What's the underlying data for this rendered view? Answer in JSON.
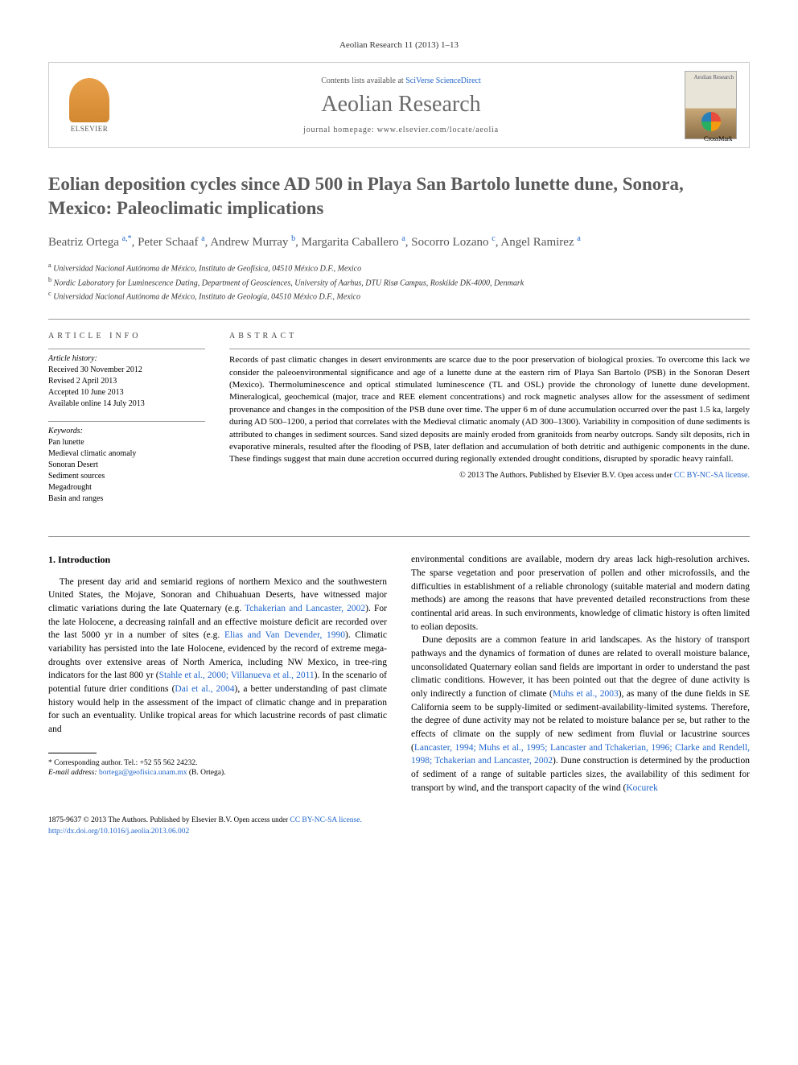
{
  "running_head": "Aeolian Research 11 (2013) 1–13",
  "header": {
    "contents_prefix": "Contents lists available at ",
    "contents_link": "SciVerse ScienceDirect",
    "journal": "Aeolian Research",
    "homepage_prefix": "journal homepage: ",
    "homepage_url": "www.elsevier.com/locate/aeolia",
    "publisher": "ELSEVIER",
    "cover_label": "Aeolian Research"
  },
  "crossmark": "CrossMark",
  "title": "Eolian deposition cycles since AD 500 in Playa San Bartolo lunette dune, Sonora, Mexico: Paleoclimatic implications",
  "authors_html": "Beatriz Ortega <sup>a,*</sup>, Peter Schaaf <sup>a</sup>, Andrew Murray <sup>b</sup>, Margarita Caballero <sup>a</sup>, Socorro Lozano <sup>c</sup>, Angel Ramirez <sup>a</sup>",
  "affiliations": [
    {
      "sup": "a",
      "text": "Universidad Nacional Autónoma de México, Instituto de Geofísica, 04510 México D.F., Mexico"
    },
    {
      "sup": "b",
      "text": "Nordic Laboratory for Luminescence Dating, Department of Geosciences, University of Aarhus, DTU Risø Campus, Roskilde DK-4000, Denmark"
    },
    {
      "sup": "c",
      "text": "Universidad Nacional Autónoma de México, Instituto de Geología, 04510 México D.F., Mexico"
    }
  ],
  "article_info": {
    "heading": "ARTICLE INFO",
    "history_head": "Article history:",
    "history": [
      "Received 30 November 2012",
      "Revised 2 April 2013",
      "Accepted 10 June 2013",
      "Available online 14 July 2013"
    ],
    "keywords_head": "Keywords:",
    "keywords": [
      "Pan lunette",
      "Medieval climatic anomaly",
      "Sonoran Desert",
      "Sediment sources",
      "Megadrought",
      "Basin and ranges"
    ]
  },
  "abstract": {
    "heading": "ABSTRACT",
    "text": "Records of past climatic changes in desert environments are scarce due to the poor preservation of biological proxies. To overcome this lack we consider the paleoenvironmental significance and age of a lunette dune at the eastern rim of Playa San Bartolo (PSB) in the Sonoran Desert (Mexico). Thermoluminescence and optical stimulated luminescence (TL and OSL) provide the chronology of lunette dune development. Mineralogical, geochemical (major, trace and REE element concentrations) and rock magnetic analyses allow for the assessment of sediment provenance and changes in the composition of the PSB dune over time. The upper 6 m of dune accumulation occurred over the past 1.5 ka, largely during AD 500–1200, a period that correlates with the Medieval climatic anomaly (AD 300–1300). Variability in composition of dune sediments is attributed to changes in sediment sources. Sand sized deposits are mainly eroded from granitoids from nearby outcrops. Sandy silt deposits, rich in evaporative minerals, resulted after the flooding of PSB, later deflation and accumulation of both detritic and authigenic components in the dune. These findings suggest that main dune accretion occurred during regionally extended drought conditions, disrupted by sporadic heavy rainfall.",
    "copyright": "© 2013 The Authors. Published by Elsevier B.V. ",
    "open_access_prefix": "Open access under ",
    "license_link": "CC BY-NC-SA license."
  },
  "section1_head": "1. Introduction",
  "col_left_p1a": "The present day arid and semiarid regions of northern Mexico and the southwestern United States, the Mojave, Sonoran and Chihuahuan Deserts, have witnessed major climatic variations during the late Quaternary (e.g. ",
  "col_left_link1": "Tchakerian and Lancaster, 2002",
  "col_left_p1b": "). For the late Holocene, a decreasing rainfall and an effective moisture deficit are recorded over the last 5000 yr in a number of sites (e.g. ",
  "col_left_link2": "Elias and Van Devender, 1990",
  "col_left_p1c": "). Climatic variability has persisted into the late Holocene, evidenced by the record of extreme mega-droughts over extensive areas of North America, including NW Mexico, in tree-ring indicators for the last 800 yr (",
  "col_left_link3": "Stahle et al., 2000; Villanueva et al., 2011",
  "col_left_p1d": "). In the scenario of potential future drier conditions (",
  "col_left_link4": "Dai et al., 2004",
  "col_left_p1e": "), a better understanding of past climate history would help in the assessment of the impact of climatic change and in preparation for such an eventuality. Unlike tropical areas for which lacustrine records of past climatic and",
  "col_right_p1": "environmental conditions are available, modern dry areas lack high-resolution archives. The sparse vegetation and poor preservation of pollen and other microfossils, and the difficulties in establishment of a reliable chronology (suitable material and modern dating methods) are among the reasons that have prevented detailed reconstructions from these continental arid areas. In such environments, knowledge of climatic history is often limited to eolian deposits.",
  "col_right_p2a": "Dune deposits are a common feature in arid landscapes. As the history of transport pathways and the dynamics of formation of dunes are related to overall moisture balance, unconsolidated Quaternary eolian sand fields are important in order to understand the past climatic conditions. However, it has been pointed out that the degree of dune activity is only indirectly a function of climate (",
  "col_right_link1": "Muhs et al., 2003",
  "col_right_p2b": "), as many of the dune fields in SE California seem to be supply-limited or sediment-availability-limited systems. Therefore, the degree of dune activity may not be related to moisture balance per se, but rather to the effects of climate on the supply of new sediment from fluvial or lacustrine sources (",
  "col_right_link2": "Lancaster, 1994; Muhs et al., 1995; Lancaster and Tchakerian, 1996; Clarke and Rendell, 1998; Tchakerian and Lancaster, 2002",
  "col_right_p2c": "). Dune construction is determined by the production of sediment of a range of suitable particles sizes, the availability of this sediment for transport by wind, and the transport capacity of the wind (",
  "col_right_link3": "Kocurek",
  "corresponding": {
    "star": "*",
    "label": "Corresponding author. Tel.: +52 55 562 24232.",
    "email_label": "E-mail address: ",
    "email": "bortega@geofisica.unam.mx",
    "email_suffix": " (B. Ortega)."
  },
  "footer": {
    "issn": "1875-9637 © 2013 The Authors. Published by Elsevier B.V. ",
    "open_access_prefix": "Open access under ",
    "license_link": "CC BY-NC-SA license.",
    "doi": "http://dx.doi.org/10.1016/j.aeolia.2013.06.002"
  }
}
